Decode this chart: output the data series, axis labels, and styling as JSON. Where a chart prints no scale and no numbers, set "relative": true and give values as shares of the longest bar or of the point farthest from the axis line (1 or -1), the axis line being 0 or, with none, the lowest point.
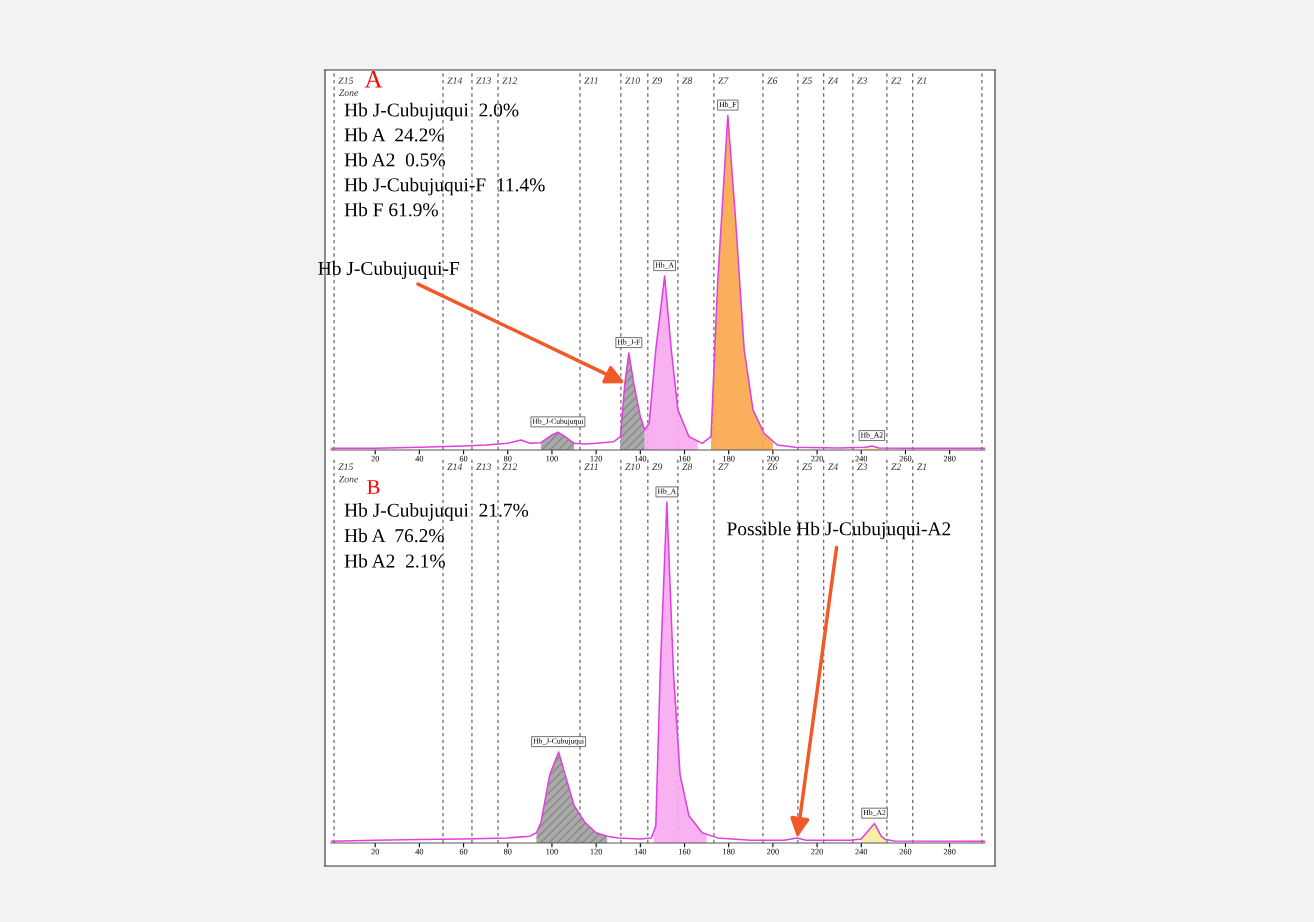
{
  "chart_data": [
    {
      "type": "line",
      "title": "A",
      "relative": true,
      "xlim": [
        0,
        296
      ],
      "xticks": [
        20,
        40,
        60,
        80,
        100,
        120,
        140,
        160,
        180,
        200,
        220,
        240,
        260,
        280
      ],
      "grid": false,
      "legend": false,
      "series": [
        {
          "type": "area",
          "color": "#a0a0a0",
          "x": [
            95,
            100,
            102.7,
            106,
            110
          ],
          "values": [
            0.022,
            0.045,
            0.053,
            0.04,
            0.02
          ]
        },
        {
          "type": "area",
          "color": "#a0a0a0",
          "x": [
            131,
            133,
            134.8,
            137,
            140,
            142
          ],
          "values": [
            0.04,
            0.2,
            0.29,
            0.2,
            0.1,
            0.06
          ]
        },
        {
          "type": "area",
          "color": "#f7a8f0",
          "x": [
            142,
            144,
            147,
            151,
            154,
            157,
            162,
            166
          ],
          "values": [
            0.06,
            0.08,
            0.3,
            0.52,
            0.3,
            0.12,
            0.04,
            0.03
          ]
        },
        {
          "type": "area",
          "color": "#f9a64a",
          "x": [
            172,
            175,
            179.6,
            183,
            187,
            191,
            196,
            200
          ],
          "values": [
            0.04,
            0.5,
            1.0,
            0.7,
            0.3,
            0.12,
            0.05,
            0.025
          ]
        },
        {
          "type": "area",
          "color": "#f6ee9c",
          "x": [
            241,
            242,
            244.8,
            248,
            249
          ],
          "values": [
            0.006,
            0.008,
            0.012,
            0.006,
            0.005
          ]
        },
        {
          "type": "line",
          "color": "#e040e0",
          "x": [
            0,
            20,
            40,
            60,
            70,
            80,
            86,
            90,
            95,
            100,
            102.7,
            106,
            110,
            115,
            120,
            128,
            131,
            133,
            134.8,
            137,
            140,
            142,
            144,
            147,
            151,
            154,
            157,
            162,
            168,
            172,
            175,
            179.6,
            183,
            187,
            191,
            196,
            202,
            210,
            230,
            242,
            244.8,
            248,
            260,
            296
          ],
          "values": [
            0.005,
            0.005,
            0.008,
            0.012,
            0.015,
            0.02,
            0.03,
            0.02,
            0.022,
            0.045,
            0.053,
            0.04,
            0.02,
            0.018,
            0.02,
            0.025,
            0.04,
            0.2,
            0.29,
            0.2,
            0.1,
            0.06,
            0.08,
            0.3,
            0.52,
            0.3,
            0.12,
            0.04,
            0.02,
            0.04,
            0.5,
            1.0,
            0.7,
            0.3,
            0.12,
            0.05,
            0.015,
            0.008,
            0.006,
            0.008,
            0.012,
            0.006,
            0.005,
            0.005
          ]
        }
      ],
      "ref_lines": [
        {
          "axis": "x",
          "value": 1.4,
          "label": "Z15",
          "line_style": "dashed"
        },
        {
          "axis": "x",
          "value": 50.7,
          "label": "Z14",
          "line_style": "dashed"
        },
        {
          "axis": "x",
          "value": 63.8,
          "label": "Z13",
          "line_style": "dashed"
        },
        {
          "axis": "x",
          "value": 75.6,
          "label": "Z12",
          "line_style": "dashed"
        },
        {
          "axis": "x",
          "value": 112.7,
          "label": "Z11",
          "line_style": "dashed"
        },
        {
          "axis": "x",
          "value": 131.2,
          "label": "Z10",
          "line_style": "dashed"
        },
        {
          "axis": "x",
          "value": 143.4,
          "label": "Z9",
          "line_style": "dashed"
        },
        {
          "axis": "x",
          "value": 157,
          "label": "Z8",
          "line_style": "dashed"
        },
        {
          "axis": "x",
          "value": 173.3,
          "label": "Z7",
          "line_style": "dashed"
        },
        {
          "axis": "x",
          "value": 195.5,
          "label": "Z6",
          "line_style": "dashed"
        },
        {
          "axis": "x",
          "value": 211.3,
          "label": "Z5",
          "line_style": "dashed"
        },
        {
          "axis": "x",
          "value": 223,
          "label": "Z4",
          "line_style": "dashed"
        },
        {
          "axis": "x",
          "value": 236.2,
          "label": "Z3",
          "line_style": "dashed"
        },
        {
          "axis": "x",
          "value": 251.6,
          "label": "Z2",
          "line_style": "dashed"
        },
        {
          "axis": "x",
          "value": 263.3,
          "label": "Z1",
          "line_style": "dashed"
        },
        {
          "axis": "x",
          "value": 294.6,
          "label": null,
          "line_style": "dashed"
        }
      ],
      "annotations": [
        "Zone",
        "Hb J-Cubujuqui  2.0%",
        "Hb A  24.2%",
        "Hb A2  0.5%",
        "Hb J-Cubujuqui-F  11.4%",
        "Hb F 61.9%",
        {
          "text": "Hb_J-Cubujuqui",
          "x": 102.7,
          "y": 0.053
        },
        {
          "text": "Hb_J-F",
          "x": 134.8,
          "y": 0.29
        },
        {
          "text": "Hb_A",
          "x": 151,
          "y": 0.52
        },
        {
          "text": "Hb_F",
          "x": 179.6,
          "y": 1.0
        },
        {
          "text": "Hb_A2",
          "x": 244.8,
          "y": 0.012
        },
        {
          "text": "Hb J-Cubujuqui-F",
          "x": 133,
          "y": 0.2
        }
      ]
    },
    {
      "type": "line",
      "title": "B",
      "relative": true,
      "xlim": [
        0,
        296
      ],
      "xticks": [
        20,
        40,
        60,
        80,
        100,
        120,
        140,
        160,
        180,
        200,
        220,
        240,
        260,
        280
      ],
      "grid": false,
      "legend": false,
      "series": [
        {
          "type": "area",
          "color": "#a0a0a0",
          "x": [
            93,
            95,
            99,
            103,
            106,
            110,
            115,
            120,
            125
          ],
          "values": [
            0.03,
            0.06,
            0.2,
            0.267,
            0.2,
            0.11,
            0.06,
            0.03,
            0.02
          ]
        },
        {
          "type": "area",
          "color": "#f7a8f0",
          "x": [
            146,
            147,
            149,
            152,
            155,
            158,
            162,
            168,
            170
          ],
          "values": [
            0.02,
            0.05,
            0.5,
            1.0,
            0.5,
            0.2,
            0.08,
            0.03,
            0.025
          ]
        },
        {
          "type": "area",
          "color": "#f6ee9c",
          "x": [
            240,
            241,
            246,
            249,
            251
          ],
          "values": [
            0.012,
            0.02,
            0.057,
            0.02,
            0.01
          ]
        },
        {
          "type": "line",
          "color": "#e040e0",
          "x": [
            0,
            20,
            40,
            60,
            80,
            90,
            93,
            95,
            99,
            103,
            106,
            110,
            115,
            120,
            125,
            130,
            140,
            145,
            147,
            149,
            152,
            155,
            158,
            162,
            168,
            175,
            190,
            205,
            211,
            215,
            235,
            240,
            241,
            246,
            249,
            251,
            255,
            296
          ],
          "values": [
            0.005,
            0.008,
            0.01,
            0.012,
            0.015,
            0.02,
            0.03,
            0.06,
            0.2,
            0.267,
            0.2,
            0.11,
            0.06,
            0.03,
            0.02,
            0.015,
            0.012,
            0.015,
            0.05,
            0.5,
            1.0,
            0.5,
            0.2,
            0.08,
            0.03,
            0.015,
            0.008,
            0.008,
            0.015,
            0.008,
            0.008,
            0.012,
            0.02,
            0.057,
            0.02,
            0.01,
            0.006,
            0.005
          ]
        }
      ],
      "ref_lines": [
        {
          "axis": "x",
          "value": 1.4,
          "label": "Z15",
          "line_style": "dashed"
        },
        {
          "axis": "x",
          "value": 50.7,
          "label": "Z14",
          "line_style": "dashed"
        },
        {
          "axis": "x",
          "value": 63.8,
          "label": "Z13",
          "line_style": "dashed"
        },
        {
          "axis": "x",
          "value": 75.6,
          "label": "Z12",
          "line_style": "dashed"
        },
        {
          "axis": "x",
          "value": 112.7,
          "label": "Z11",
          "line_style": "dashed"
        },
        {
          "axis": "x",
          "value": 131.2,
          "label": "Z10",
          "line_style": "dashed"
        },
        {
          "axis": "x",
          "value": 143.4,
          "label": "Z9",
          "line_style": "dashed"
        },
        {
          "axis": "x",
          "value": 157,
          "label": "Z8",
          "line_style": "dashed"
        },
        {
          "axis": "x",
          "value": 173.3,
          "label": "Z7",
          "line_style": "dashed"
        },
        {
          "axis": "x",
          "value": 195.5,
          "label": "Z6",
          "line_style": "dashed"
        },
        {
          "axis": "x",
          "value": 211.3,
          "label": "Z5",
          "line_style": "dashed"
        },
        {
          "axis": "x",
          "value": 223,
          "label": "Z4",
          "line_style": "dashed"
        },
        {
          "axis": "x",
          "value": 236.2,
          "label": "Z3",
          "line_style": "dashed"
        },
        {
          "axis": "x",
          "value": 251.6,
          "label": "Z2",
          "line_style": "dashed"
        },
        {
          "axis": "x",
          "value": 263.3,
          "label": "Z1",
          "line_style": "dashed"
        },
        {
          "axis": "x",
          "value": 294.6,
          "label": null,
          "line_style": "dashed"
        }
      ],
      "annotations": [
        "Zone",
        "Hb J-Cubujuqui  21.7%",
        "Hb A  76.2%",
        "Hb A2  2.1%",
        {
          "text": "Hb_J-Cubujuqui",
          "x": 103,
          "y": 0.267
        },
        {
          "text": "Hb_A",
          "x": 152,
          "y": 1.0
        },
        {
          "text": "Hb_A2",
          "x": 246,
          "y": 0.057
        },
        {
          "text": "Possible Hb J-Cubujuqui-A2",
          "x": 211,
          "y": 0.015
        }
      ]
    }
  ]
}
